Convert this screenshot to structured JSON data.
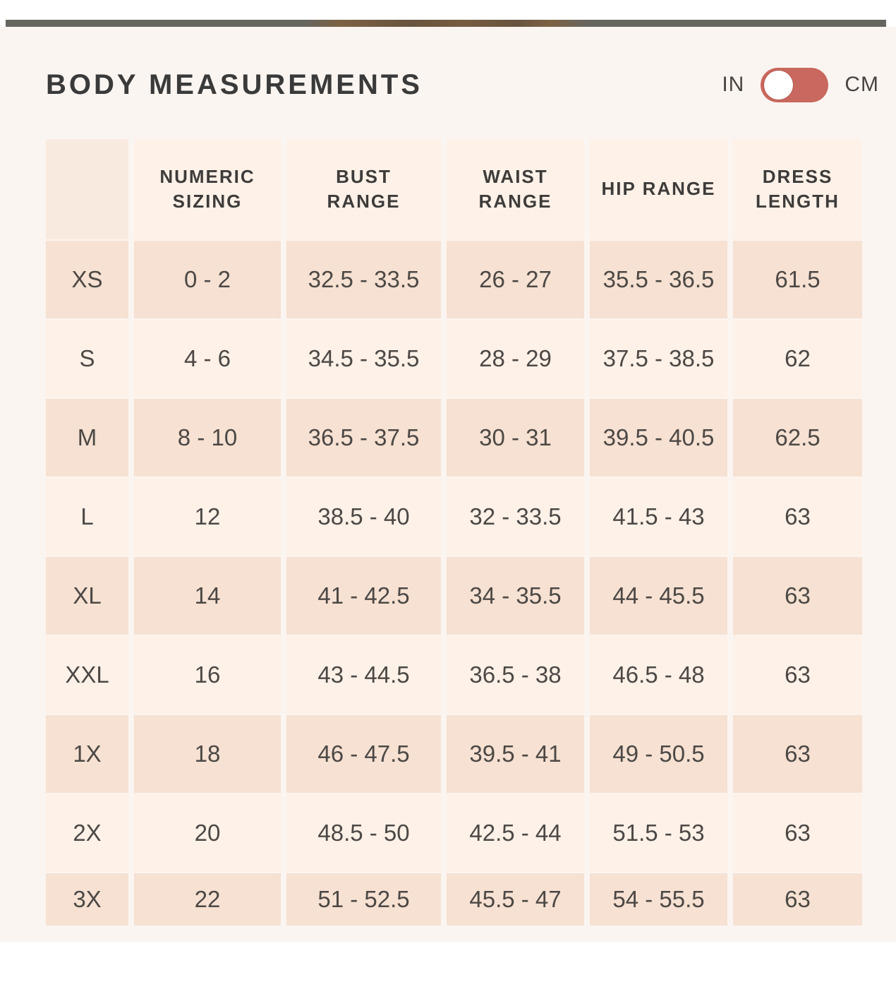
{
  "page": {
    "title": "BODY MEASUREMENTS",
    "unit_toggle": {
      "left_label": "IN",
      "right_label": "CM",
      "selected_unit": "IN",
      "track_color": "#c9685e",
      "knob_color": "#ffffff"
    }
  },
  "colors": {
    "content_background": "#fbf5f1",
    "row_dark": "#f6e1d2",
    "row_light": "#fdf1e8",
    "text": "#4c4845",
    "title_text": "#3a3a3a"
  },
  "table": {
    "column_keys": [
      "size",
      "numeric_sizing",
      "bust_range",
      "waist_range",
      "hip_range",
      "dress_length"
    ],
    "columns": [
      "",
      "NUMERIC SIZING",
      "BUST RANGE",
      "WAIST RANGE",
      "HIP RANGE",
      "DRESS LENGTH"
    ],
    "rows": [
      {
        "size": "XS",
        "numeric_sizing": "0 - 2",
        "bust_range": "32.5 - 33.5",
        "waist_range": "26 - 27",
        "hip_range": "35.5 - 36.5",
        "dress_length": "61.5"
      },
      {
        "size": "S",
        "numeric_sizing": "4 - 6",
        "bust_range": "34.5 - 35.5",
        "waist_range": "28 - 29",
        "hip_range": "37.5 - 38.5",
        "dress_length": "62"
      },
      {
        "size": "M",
        "numeric_sizing": "8 - 10",
        "bust_range": "36.5 - 37.5",
        "waist_range": "30 - 31",
        "hip_range": "39.5 - 40.5",
        "dress_length": "62.5"
      },
      {
        "size": "L",
        "numeric_sizing": "12",
        "bust_range": "38.5 - 40",
        "waist_range": "32 - 33.5",
        "hip_range": "41.5 - 43",
        "dress_length": "63"
      },
      {
        "size": "XL",
        "numeric_sizing": "14",
        "bust_range": "41 - 42.5",
        "waist_range": "34 - 35.5",
        "hip_range": "44 - 45.5",
        "dress_length": "63"
      },
      {
        "size": "XXL",
        "numeric_sizing": "16",
        "bust_range": "43 - 44.5",
        "waist_range": "36.5 - 38",
        "hip_range": "46.5 - 48",
        "dress_length": "63"
      },
      {
        "size": "1X",
        "numeric_sizing": "18",
        "bust_range": "46 - 47.5",
        "waist_range": "39.5 - 41",
        "hip_range": "49 - 50.5",
        "dress_length": "63"
      },
      {
        "size": "2X",
        "numeric_sizing": "20",
        "bust_range": "48.5 - 50",
        "waist_range": "42.5 - 44",
        "hip_range": "51.5 - 53",
        "dress_length": "63"
      },
      {
        "size": "3X",
        "numeric_sizing": "22",
        "bust_range": "51 - 52.5",
        "waist_range": "45.5 - 47",
        "hip_range": "54 - 55.5",
        "dress_length": "63"
      }
    ]
  }
}
